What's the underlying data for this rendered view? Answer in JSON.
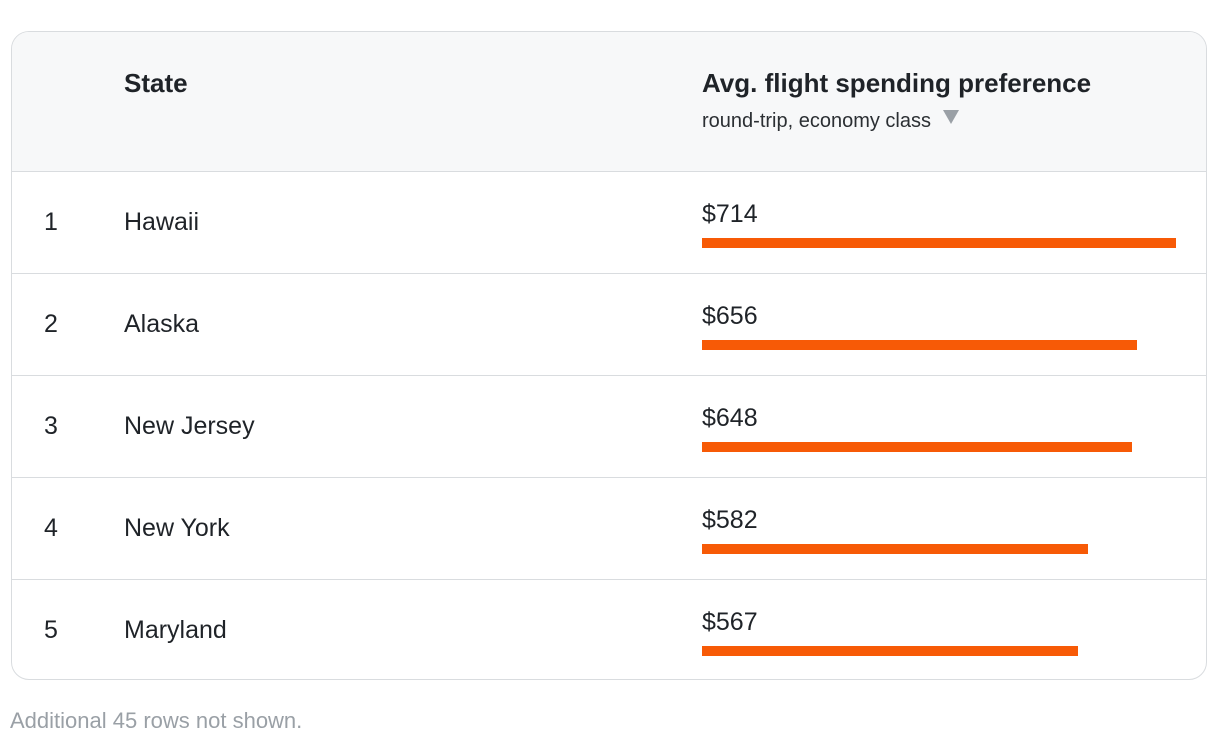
{
  "table": {
    "headers": {
      "state": "State",
      "value": "Avg. flight spending preference",
      "value_sub": "round-trip, economy class"
    },
    "sort_icon": "triangle-down-icon",
    "bar_color": "#f75a06",
    "rows": [
      {
        "rank": "1",
        "state": "Hawaii",
        "label": "$714",
        "value": 714
      },
      {
        "rank": "2",
        "state": "Alaska",
        "label": "$656",
        "value": 656
      },
      {
        "rank": "3",
        "state": "New Jersey",
        "label": "$648",
        "value": 648
      },
      {
        "rank": "4",
        "state": "New York",
        "label": "$582",
        "value": 582
      },
      {
        "rank": "5",
        "state": "Maryland",
        "label": "$567",
        "value": 567
      }
    ]
  },
  "footnote": "Additional 45 rows not shown.",
  "chart_data": {
    "type": "bar",
    "categories": [
      "Hawaii",
      "Alaska",
      "New Jersey",
      "New York",
      "Maryland"
    ],
    "values": [
      714,
      656,
      648,
      582,
      567
    ],
    "title": "",
    "xlabel": "Avg. flight spending preference",
    "ylabel": "State",
    "grid": false
  }
}
